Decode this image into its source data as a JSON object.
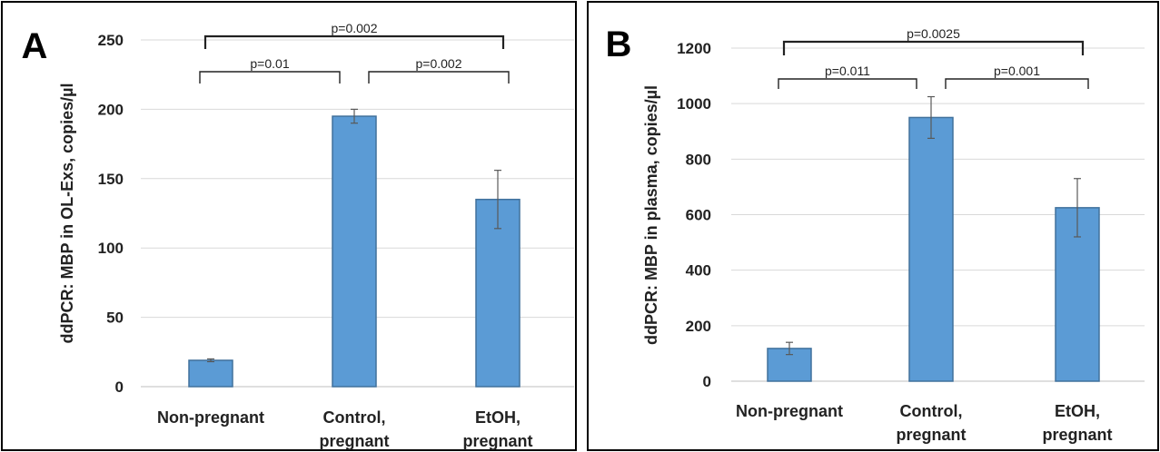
{
  "chart_data": [
    {
      "type": "bar",
      "panel_label": "A",
      "categories": [
        [
          "Non-pregnant"
        ],
        [
          "Control,",
          "pregnant"
        ],
        [
          "EtOH,",
          "pregnant"
        ]
      ],
      "values": [
        19,
        195,
        135
      ],
      "error": [
        1,
        5,
        21
      ],
      "ylabel": "ddPCR: MBP in OL-Exs, copies/µl",
      "ylim": [
        0,
        250
      ],
      "yticks": [
        0,
        50,
        100,
        150,
        200,
        250
      ],
      "grid": true,
      "bar_color": "#5b9bd5",
      "bar_edge": "#41719c",
      "comparisons": [
        {
          "from": 0,
          "to": 1,
          "label": "p=0.01"
        },
        {
          "from": 1,
          "to": 2,
          "label": "p=0.002"
        },
        {
          "from": 0,
          "to": 2,
          "label": "p=0.002"
        }
      ]
    },
    {
      "type": "bar",
      "panel_label": "B",
      "categories": [
        [
          "Non-pregnant"
        ],
        [
          "Control,",
          "pregnant"
        ],
        [
          "EtOH,",
          "pregnant"
        ]
      ],
      "values": [
        118,
        950,
        625
      ],
      "error": [
        22,
        75,
        105
      ],
      "ylabel": "ddPCR: MBP in plasma, copies/µl",
      "ylim": [
        0,
        1200
      ],
      "yticks": [
        0,
        200,
        400,
        600,
        800,
        1000,
        1200
      ],
      "grid": true,
      "bar_color": "#5b9bd5",
      "bar_edge": "#41719c",
      "comparisons": [
        {
          "from": 0,
          "to": 1,
          "label": "p=0.011"
        },
        {
          "from": 1,
          "to": 2,
          "label": "p=0.001"
        },
        {
          "from": 0,
          "to": 2,
          "label": "p=0.0025"
        }
      ]
    }
  ]
}
